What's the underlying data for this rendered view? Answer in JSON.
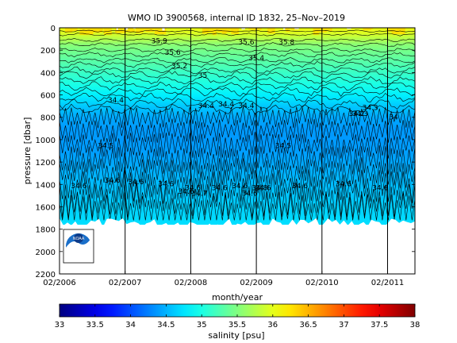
{
  "chart_data": {
    "type": "heatmap",
    "title": "WMO ID 3900568, internal ID 1832, 25–Nov–2019",
    "xlabel": "month/year",
    "ylabel": "pressure [dbar]",
    "x_ticks": [
      "02/2006",
      "02/2007",
      "02/2008",
      "02/2009",
      "02/2010",
      "02/2011"
    ],
    "xlim": [
      "2006-02",
      "2011-07"
    ],
    "ylim": [
      0,
      2200
    ],
    "y_reversed": true,
    "y_ticks": [
      0,
      200,
      400,
      600,
      800,
      1000,
      1200,
      1400,
      1600,
      1800,
      2000,
      2200
    ],
    "year_dividers": [
      "2007-02",
      "2008-02",
      "2009-02",
      "2010-02",
      "2011-02"
    ],
    "max_profile_depth_dbar": 1750,
    "colorbar": {
      "label": "salinity [psu]",
      "range": [
        33,
        38
      ],
      "ticks": [
        "33",
        "33.5",
        "34",
        "34.5",
        "35",
        "35.5",
        "36",
        "36.5",
        "37",
        "37.5",
        "38"
      ],
      "colormap": "jet"
    },
    "salinity_profile": {
      "pressure_dbar": [
        0,
        50,
        100,
        150,
        200,
        300,
        400,
        500,
        600,
        700,
        800,
        900,
        1000,
        1100,
        1200,
        1300,
        1400,
        1500,
        1600,
        1700,
        1750
      ],
      "salinity_psu": [
        36.05,
        35.95,
        35.75,
        35.55,
        35.45,
        35.3,
        35.15,
        35.0,
        34.8,
        34.6,
        34.45,
        34.38,
        34.38,
        34.4,
        34.45,
        34.5,
        34.55,
        34.6,
        34.65,
        34.7,
        34.72
      ]
    },
    "contour_labels": [
      "35.9",
      "35.6",
      "35.8",
      "35.6",
      "35.4",
      "35.2",
      "35",
      "34.4",
      "34.4",
      "34.4",
      "34.4",
      "34.3",
      "34.2",
      "34.3",
      "34",
      "34.5",
      "34.5",
      "34.6",
      "34.6",
      "34.6",
      "34.6",
      "34.6",
      "34.6",
      "34.6",
      "34.6",
      "34.6",
      "34.7",
      "34.6",
      "34.8",
      "34.6",
      "34.6",
      "34.6"
    ],
    "logo": "NOAA"
  }
}
